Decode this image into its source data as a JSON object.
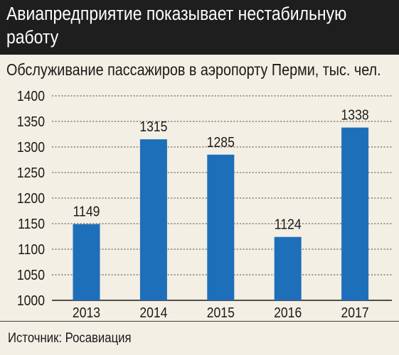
{
  "header": {
    "title": "Авиапредприятие показывает нестабильную работу",
    "subtitle": "Обслуживание пассажиров в аэропорту Перми, тыс. чел.",
    "source": "Источник: Росавиация"
  },
  "colors": {
    "bar": "#1e6fba",
    "background": "#f3efe4",
    "title_bg": "#1e1e1e",
    "grid": "#1a1a1a"
  },
  "chart_data": {
    "type": "bar",
    "title": "",
    "xlabel": "",
    "ylabel": "",
    "categories": [
      "2013",
      "2014",
      "2015",
      "2016",
      "2017"
    ],
    "values": [
      1149,
      1315,
      1285,
      1124,
      1338
    ],
    "data_labels": [
      "1149",
      "1315",
      "1285",
      "1124",
      "1338"
    ],
    "ylim": [
      1000,
      1400
    ],
    "yticks": [
      1000,
      1050,
      1100,
      1150,
      1200,
      1250,
      1300,
      1350,
      1400
    ],
    "grid": true,
    "legend": "none"
  }
}
